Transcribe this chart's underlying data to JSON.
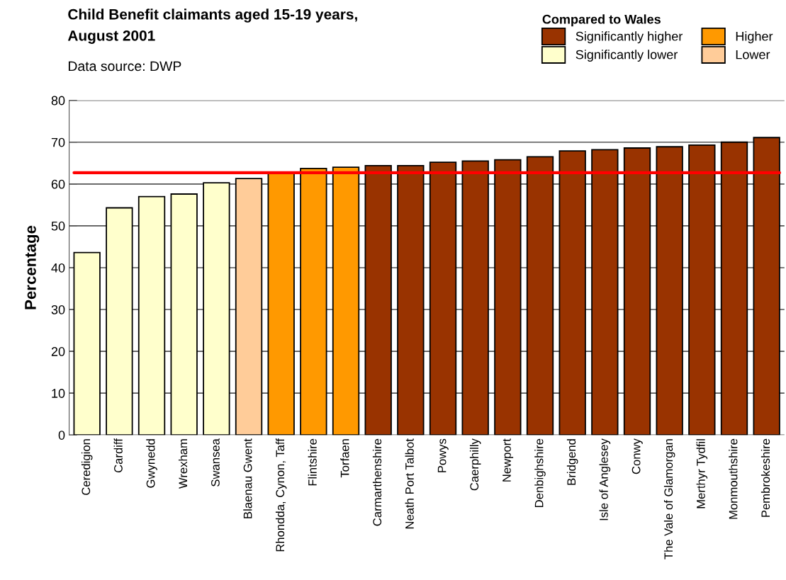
{
  "chart_data": {
    "type": "bar",
    "title": "Child Benefit claimants aged 15-19 years,\nAugust 2001",
    "annotations": [
      "Data source: DWP"
    ],
    "ylabel": "Percentage",
    "legend_title": "Compared to Wales",
    "legend": "top right",
    "grid": "y",
    "categories": [
      "Ceredigion",
      "Cardiff",
      "Gwynedd",
      "Wrexham",
      "Swansea",
      "Blaenau Gwent",
      "Rhondda, Cynon, Taff",
      "Flintshire",
      "Torfaen",
      "Carmarthenshire",
      "Neath Port Talbot",
      "Powys",
      "Caerphilly",
      "Newport",
      "Denbighshire",
      "Bridgend",
      "Isle of Anglesey",
      "Conwy",
      "The Vale of Glamorgan",
      "Merthyr Tydfil",
      "Monmouthshire",
      "Pembrokeshire"
    ],
    "series": [
      {
        "name": "Significantly higher",
        "color": "#993300",
        "values": [
          null,
          null,
          null,
          null,
          null,
          null,
          null,
          null,
          null,
          64.4,
          64.4,
          65.2,
          65.5,
          65.8,
          66.5,
          67.9,
          68.2,
          68.6,
          68.9,
          69.3,
          70.0,
          71.1
        ]
      },
      {
        "name": "Significantly lower",
        "color": "#ffffcc",
        "values": [
          43.6,
          54.3,
          57.0,
          57.6,
          60.3,
          null,
          null,
          null,
          null,
          null,
          null,
          null,
          null,
          null,
          null,
          null,
          null,
          null,
          null,
          null,
          null,
          null
        ]
      },
      {
        "name": "Higher",
        "color": "#ff9900",
        "values": [
          null,
          null,
          null,
          null,
          null,
          null,
          62.8,
          63.7,
          64.0,
          null,
          null,
          null,
          null,
          null,
          null,
          null,
          null,
          null,
          null,
          null,
          null,
          null
        ]
      },
      {
        "name": "Lower",
        "color": "#ffcc99",
        "values": [
          null,
          null,
          null,
          null,
          null,
          61.3,
          null,
          null,
          null,
          null,
          null,
          null,
          null,
          null,
          null,
          null,
          null,
          null,
          null,
          null,
          null,
          null
        ]
      }
    ],
    "ylim": [
      0,
      80
    ],
    "yticks": [
      0,
      10,
      20,
      30,
      40,
      50,
      60,
      70,
      80
    ],
    "ref_lines": [
      {
        "axis": "y",
        "value": 62.7,
        "color": "#ff0000",
        "line_style": "solid"
      }
    ]
  }
}
